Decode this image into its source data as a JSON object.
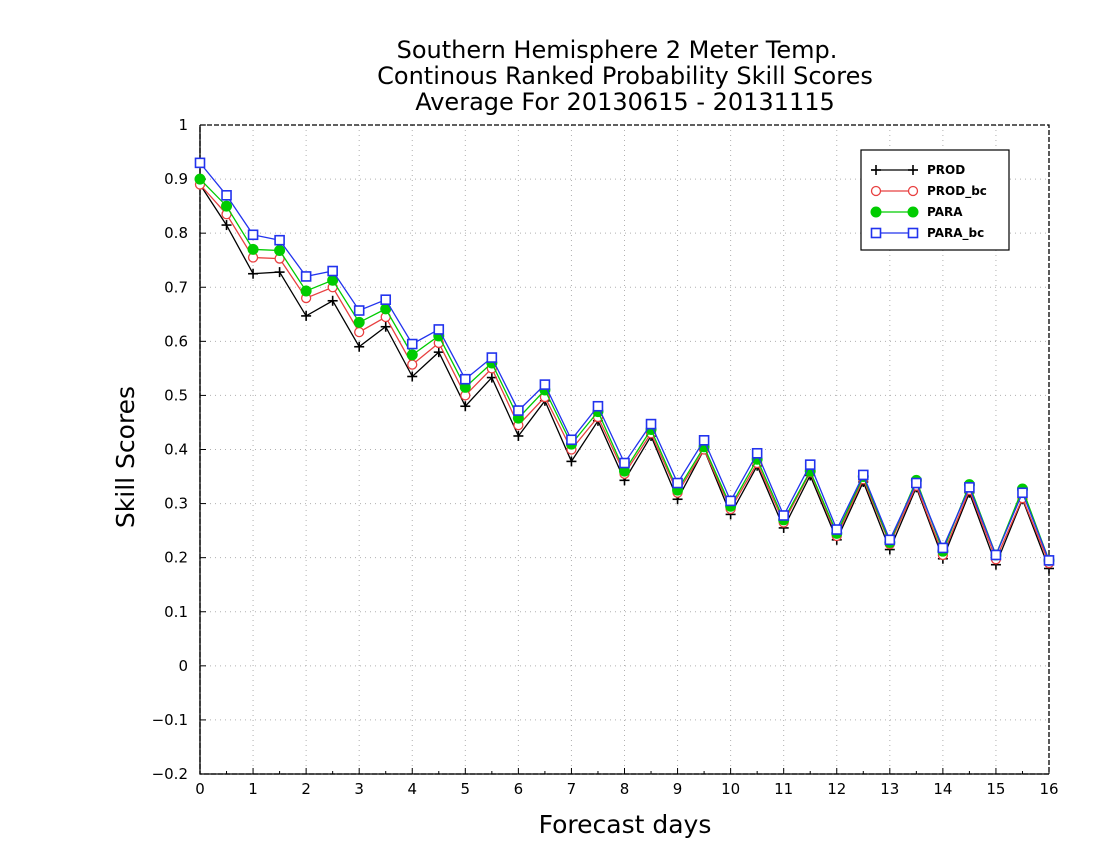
{
  "chart_data": {
    "type": "line",
    "title_lines": [
      "Southern Hemisphere 2 Meter Temp.",
      "Continous Ranked Probability Skill Scores",
      "Average For 20130615 - 20131115"
    ],
    "xlabel": "Forecast days",
    "ylabel": "Skill Scores",
    "xlim": [
      0,
      16
    ],
    "ylim": [
      -0.2,
      1
    ],
    "x_ticks": [
      0,
      1,
      2,
      3,
      4,
      5,
      6,
      7,
      8,
      9,
      10,
      11,
      12,
      13,
      14,
      15,
      16
    ],
    "y_ticks": [
      -0.2,
      -0.1,
      0,
      0.1,
      0.2,
      0.3,
      0.4,
      0.5,
      0.6,
      0.7,
      0.8,
      0.9,
      1
    ],
    "y_tick_labels": [
      "−0.2",
      "−0.1",
      "0",
      "0.1",
      "0.2",
      "0.3",
      "0.4",
      "0.5",
      "0.6",
      "0.7",
      "0.8",
      "0.9",
      "1"
    ],
    "grid": true,
    "legend_position": "top-right",
    "x": [
      0,
      0.5,
      1,
      1.5,
      2,
      2.5,
      3,
      3.5,
      4,
      4.5,
      5,
      5.5,
      6,
      6.5,
      7,
      7.5,
      8,
      8.5,
      9,
      9.5,
      10,
      10.5,
      11,
      11.5,
      12,
      12.5,
      13,
      13.5,
      14,
      14.5,
      15,
      15.5,
      16
    ],
    "series": [
      {
        "name": "PROD",
        "color": "#000000",
        "marker": "plus",
        "values": [
          0.89,
          0.815,
          0.725,
          0.728,
          0.647,
          0.675,
          0.59,
          0.627,
          0.535,
          0.58,
          0.48,
          0.533,
          0.425,
          0.49,
          0.378,
          0.453,
          0.343,
          0.425,
          0.308,
          0.4,
          0.28,
          0.37,
          0.255,
          0.352,
          0.233,
          0.34,
          0.215,
          0.33,
          0.198,
          0.32,
          0.187,
          0.308,
          0.18
        ]
      },
      {
        "name": "PROD_bc",
        "color": "#e84040",
        "marker": "open-circle",
        "values": [
          0.89,
          0.835,
          0.755,
          0.753,
          0.68,
          0.7,
          0.617,
          0.645,
          0.557,
          0.597,
          0.5,
          0.55,
          0.445,
          0.497,
          0.4,
          0.46,
          0.355,
          0.43,
          0.32,
          0.4,
          0.29,
          0.375,
          0.265,
          0.358,
          0.24,
          0.345,
          0.225,
          0.333,
          0.205,
          0.325,
          0.197,
          0.31,
          0.19
        ]
      },
      {
        "name": "PARA",
        "color": "#00cc00",
        "marker": "filled-circle",
        "values": [
          0.9,
          0.85,
          0.77,
          0.768,
          0.693,
          0.713,
          0.635,
          0.66,
          0.575,
          0.61,
          0.515,
          0.56,
          0.458,
          0.51,
          0.41,
          0.47,
          0.36,
          0.437,
          0.325,
          0.405,
          0.295,
          0.382,
          0.27,
          0.36,
          0.245,
          0.35,
          0.228,
          0.343,
          0.212,
          0.335,
          0.205,
          0.327,
          0.195
        ]
      },
      {
        "name": "PARA_bc",
        "color": "#2233ee",
        "marker": "open-square",
        "values": [
          0.93,
          0.87,
          0.797,
          0.787,
          0.72,
          0.73,
          0.657,
          0.677,
          0.595,
          0.622,
          0.53,
          0.57,
          0.472,
          0.52,
          0.418,
          0.48,
          0.375,
          0.447,
          0.338,
          0.417,
          0.305,
          0.393,
          0.278,
          0.372,
          0.252,
          0.353,
          0.233,
          0.338,
          0.218,
          0.33,
          0.205,
          0.32,
          0.195
        ]
      }
    ]
  }
}
